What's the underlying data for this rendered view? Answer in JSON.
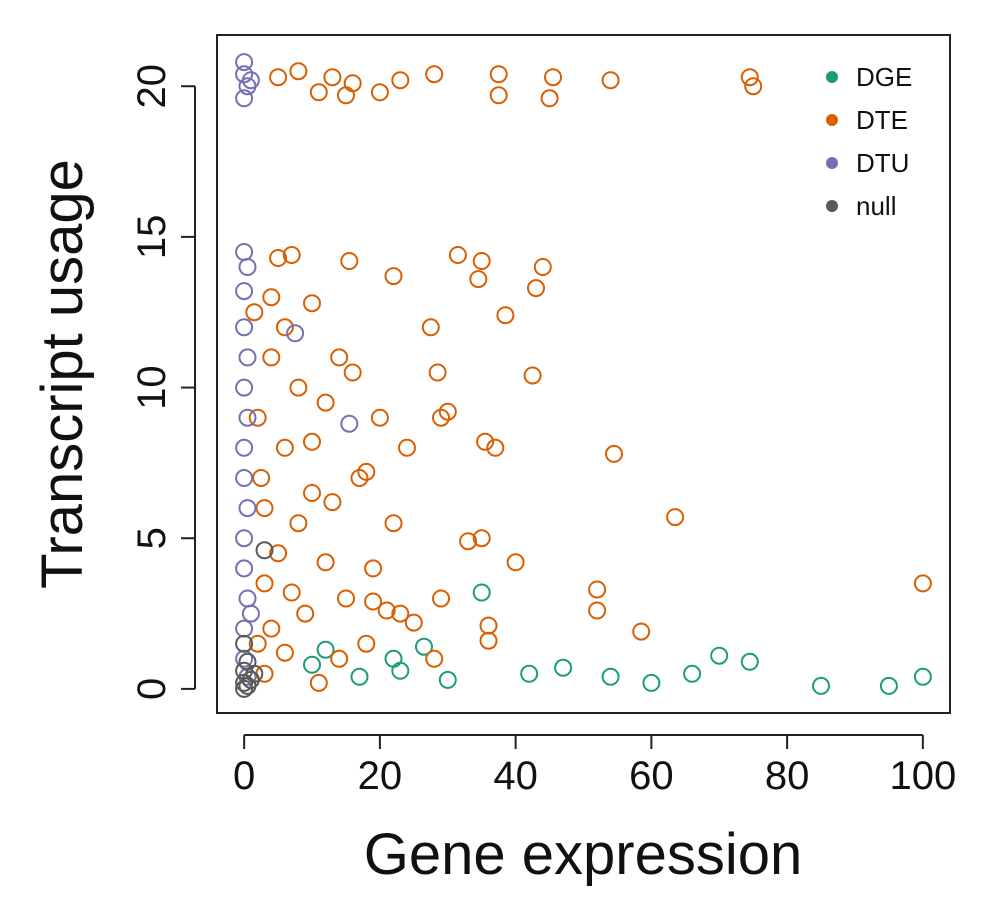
{
  "chart_data": {
    "type": "scatter",
    "title": "",
    "xlabel": "Gene expression",
    "ylabel": "Transcript usage",
    "xlim": [
      -4,
      104
    ],
    "ylim": [
      -0.8,
      21.7
    ],
    "xticks": [
      "0",
      "20",
      "40",
      "60",
      "80",
      "100"
    ],
    "yticks": [
      "0",
      "5",
      "10",
      "15",
      "20"
    ],
    "grid": false,
    "legend_position": "top-right",
    "series": [
      {
        "name": "DGE",
        "color": "#1b9e77",
        "points": [
          [
            35,
            3.2
          ],
          [
            26.5,
            1.4
          ],
          [
            12,
            1.3
          ],
          [
            70,
            1.1
          ],
          [
            22,
            1.0
          ],
          [
            74.5,
            0.9
          ],
          [
            10,
            0.8
          ],
          [
            47,
            0.7
          ],
          [
            66,
            0.5
          ],
          [
            54,
            0.4
          ],
          [
            23,
            0.6
          ],
          [
            17,
            0.4
          ],
          [
            100,
            0.4
          ],
          [
            30,
            0.3
          ],
          [
            42,
            0.5
          ],
          [
            60,
            0.2
          ],
          [
            85,
            0.1
          ],
          [
            95,
            0.1
          ]
        ]
      },
      {
        "name": "DTE",
        "color": "#d95f02",
        "points": [
          [
            5,
            20.3
          ],
          [
            8,
            20.5
          ],
          [
            13,
            20.3
          ],
          [
            16,
            20.1
          ],
          [
            20,
            19.8
          ],
          [
            23,
            20.2
          ],
          [
            28,
            20.4
          ],
          [
            37.5,
            20.4
          ],
          [
            45.5,
            20.3
          ],
          [
            54,
            20.2
          ],
          [
            74.5,
            20.3
          ],
          [
            75,
            20.0
          ],
          [
            45,
            19.6
          ],
          [
            37.5,
            19.7
          ],
          [
            11,
            19.8
          ],
          [
            15,
            19.7
          ],
          [
            31.5,
            14.4
          ],
          [
            35,
            14.2
          ],
          [
            44,
            14.0
          ],
          [
            43,
            13.3
          ],
          [
            34.5,
            13.6
          ],
          [
            22,
            13.7
          ],
          [
            15.5,
            14.2
          ],
          [
            38.5,
            12.4
          ],
          [
            27.5,
            12.0
          ],
          [
            42.5,
            10.4
          ],
          [
            28.5,
            10.5
          ],
          [
            29,
            9.0
          ],
          [
            30,
            9.2
          ],
          [
            35.5,
            8.2
          ],
          [
            37,
            8.0
          ],
          [
            24,
            8.0
          ],
          [
            54.5,
            7.8
          ],
          [
            63.5,
            5.7
          ],
          [
            100,
            3.5
          ],
          [
            52,
            3.3
          ],
          [
            52,
            2.6
          ],
          [
            58.5,
            1.9
          ],
          [
            36,
            2.1
          ],
          [
            36,
            1.6
          ],
          [
            40,
            4.2
          ],
          [
            33,
            4.9
          ],
          [
            35,
            5.0
          ],
          [
            29,
            3.0
          ],
          [
            23,
            2.5
          ],
          [
            28,
            1.0
          ],
          [
            19,
            2.9
          ],
          [
            21,
            2.6
          ],
          [
            18,
            1.5
          ],
          [
            13,
            6.2
          ],
          [
            17,
            7.0
          ],
          [
            20,
            9.0
          ],
          [
            14,
            11.0
          ],
          [
            10,
            12.8
          ],
          [
            7,
            14.4
          ],
          [
            5,
            14.3
          ],
          [
            4,
            13.0
          ],
          [
            8,
            10.0
          ],
          [
            6,
            8.0
          ],
          [
            10,
            6.5
          ],
          [
            12,
            4.2
          ],
          [
            15,
            3.0
          ],
          [
            3,
            6.0
          ],
          [
            5,
            4.5
          ],
          [
            7,
            3.2
          ],
          [
            9,
            2.5
          ],
          [
            4,
            2.0
          ],
          [
            6,
            1.2
          ],
          [
            3,
            0.5
          ],
          [
            11,
            0.2
          ],
          [
            2,
            9.0
          ],
          [
            4,
            11.0
          ],
          [
            6,
            12.0
          ],
          [
            3,
            3.5
          ],
          [
            8,
            5.5
          ],
          [
            10,
            8.2
          ],
          [
            12,
            9.5
          ],
          [
            16,
            10.5
          ],
          [
            18,
            7.2
          ],
          [
            22,
            5.5
          ],
          [
            19,
            4.0
          ],
          [
            25,
            2.2
          ],
          [
            14,
            1.0
          ],
          [
            2,
            1.5
          ],
          [
            1.5,
            12.5
          ],
          [
            2.5,
            7.0
          ]
        ]
      },
      {
        "name": "DTU",
        "color": "#7570b3",
        "points": [
          [
            0,
            20.8
          ],
          [
            0,
            20.4
          ],
          [
            0.5,
            20.0
          ],
          [
            0,
            19.6
          ],
          [
            1,
            20.2
          ],
          [
            0,
            14.5
          ],
          [
            0.5,
            14.0
          ],
          [
            0,
            13.2
          ],
          [
            0,
            12.0
          ],
          [
            0.5,
            11.0
          ],
          [
            0,
            10.0
          ],
          [
            0.5,
            9.0
          ],
          [
            0,
            8.0
          ],
          [
            0,
            7.0
          ],
          [
            0.5,
            6.0
          ],
          [
            0,
            5.0
          ],
          [
            0,
            4.0
          ],
          [
            0.5,
            3.0
          ],
          [
            0,
            2.0
          ],
          [
            0,
            1.0
          ],
          [
            0.5,
            0.4
          ],
          [
            7.5,
            11.8
          ],
          [
            15.5,
            8.8
          ],
          [
            1,
            2.5
          ]
        ]
      },
      {
        "name": "null",
        "color": "#595959",
        "points": [
          [
            0,
            0.2
          ],
          [
            0,
            0.6
          ],
          [
            0.5,
            0.9
          ],
          [
            1,
            0.3
          ],
          [
            0,
            1.5
          ],
          [
            0.5,
            0.1
          ],
          [
            3,
            4.6
          ],
          [
            0,
            0.0
          ],
          [
            1.5,
            0.5
          ]
        ]
      }
    ]
  }
}
